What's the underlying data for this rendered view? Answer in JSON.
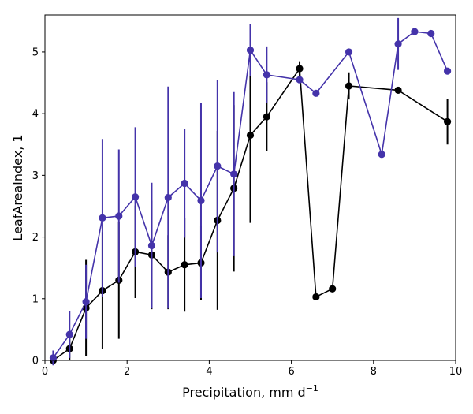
{
  "chart_data": {
    "type": "line",
    "xlabel": "Precipitation,  mm d",
    "xlabel_sup": "−1",
    "ylabel": "LeafAreaIndex,  1",
    "xlim": [
      0,
      10
    ],
    "ylim": [
      0,
      5.6
    ],
    "xticks": [
      0,
      2,
      4,
      6,
      8,
      10
    ],
    "yticks": [
      0,
      1,
      2,
      3,
      4,
      5
    ],
    "grid": false,
    "series": [
      {
        "color": "#000000",
        "x": [
          0.2,
          0.6,
          1.0,
          1.4,
          1.8,
          2.2,
          2.6,
          3.0,
          3.4,
          3.8,
          4.2,
          4.6,
          5.0,
          5.4,
          6.2,
          6.6,
          7.0,
          7.4,
          8.6,
          9.8
        ],
        "y": [
          0.0,
          0.19,
          0.85,
          1.13,
          1.3,
          1.76,
          1.71,
          1.43,
          1.55,
          1.58,
          2.27,
          2.79,
          3.65,
          3.95,
          4.73,
          1.03,
          1.16,
          4.45,
          4.38,
          3.87
        ],
        "err": [
          0.05,
          0.18,
          0.78,
          0.95,
          0.95,
          0.75,
          0.88,
          0.6,
          0.76,
          0.6,
          1.45,
          1.35,
          1.42,
          0.56,
          0.12,
          0.0,
          0.0,
          0.22,
          0.0,
          0.37
        ]
      },
      {
        "color": "#4433aa",
        "x": [
          0.2,
          0.6,
          1.0,
          1.4,
          1.8,
          2.2,
          2.6,
          3.0,
          3.4,
          3.8,
          4.2,
          4.6,
          5.0,
          5.4,
          6.2,
          6.6,
          7.4,
          8.2,
          8.6,
          9.0,
          9.4,
          9.8
        ],
        "y": [
          0.04,
          0.42,
          0.95,
          2.31,
          2.34,
          2.65,
          1.86,
          2.64,
          2.87,
          2.59,
          3.15,
          3.02,
          5.03,
          4.63,
          4.55,
          4.33,
          5.0,
          3.34,
          5.13,
          5.33,
          5.3,
          4.69
        ],
        "err": [
          0.12,
          0.38,
          0.6,
          1.28,
          1.08,
          1.13,
          1.02,
          1.8,
          0.88,
          1.58,
          1.4,
          1.33,
          0.42,
          0.46,
          0.0,
          0.0,
          0.0,
          0.0,
          0.42,
          0.0,
          0.0,
          0.0
        ]
      }
    ]
  }
}
